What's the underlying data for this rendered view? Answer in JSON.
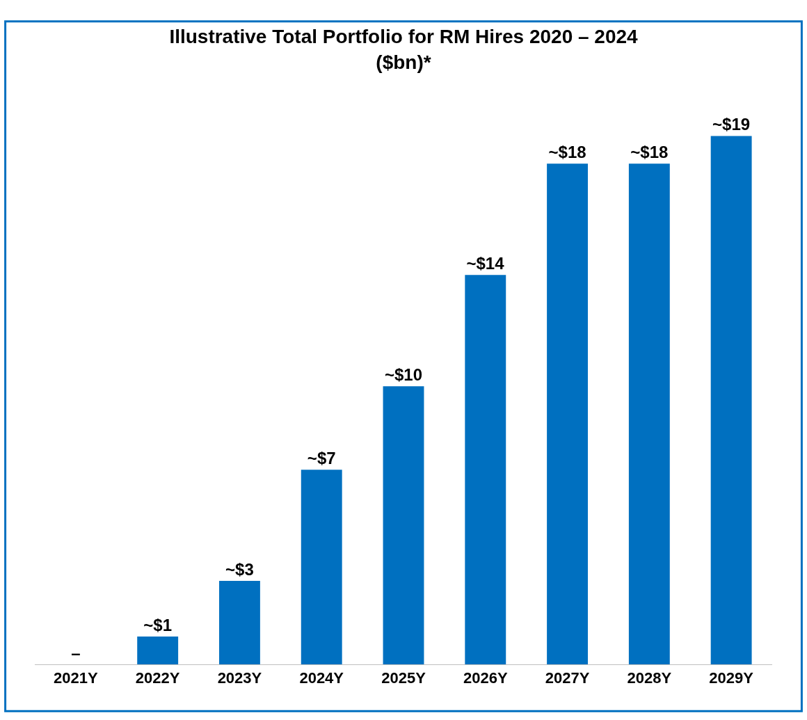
{
  "chart_data": {
    "type": "bar",
    "title": "Illustrative Total Portfolio for RM Hires 2020 – 2024\n($bn)*",
    "categories": [
      "2021Y",
      "2022Y",
      "2023Y",
      "2024Y",
      "2025Y",
      "2026Y",
      "2027Y",
      "2028Y",
      "2029Y"
    ],
    "values": [
      0,
      1,
      3,
      7,
      10,
      14,
      18,
      18,
      19
    ],
    "value_labels": [
      "–",
      "~$1",
      "~$3",
      "~$7",
      "~$10",
      "~$14",
      "~$18",
      "~$18",
      "~$19"
    ],
    "color": "#0070c0"
  }
}
